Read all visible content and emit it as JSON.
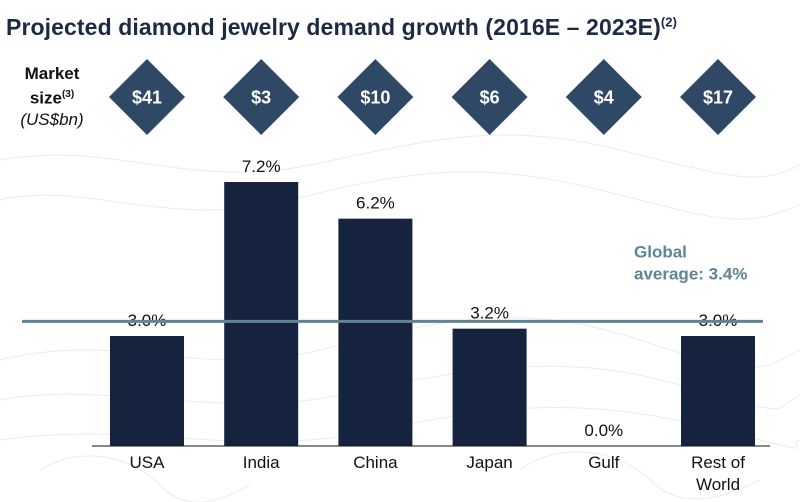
{
  "title": {
    "text": "Projected diamond jewelry demand growth (2016E – 2023E)",
    "note": "(2)"
  },
  "market_size_label": {
    "line1": "Market",
    "line2": "size",
    "note": "(3)",
    "unit": "(US$bn)"
  },
  "colors": {
    "bar": "#15233f",
    "diamond": "#2e4866",
    "average_line": "#5e8596",
    "average_text": "#5e8596",
    "title": "#1c2b44"
  },
  "chart_data": {
    "type": "bar",
    "categories": [
      "USA",
      "India",
      "China",
      "Japan",
      "Gulf",
      "Rest of World"
    ],
    "category_lines": [
      [
        "USA"
      ],
      [
        "India"
      ],
      [
        "China"
      ],
      [
        "Japan"
      ],
      [
        "Gulf"
      ],
      [
        "Rest of",
        "World"
      ]
    ],
    "values": [
      3.0,
      7.2,
      6.2,
      3.2,
      0.0,
      3.0
    ],
    "value_labels": [
      "3.0%",
      "7.2%",
      "6.2%",
      "3.2%",
      "0.0%",
      "3.0%"
    ],
    "market_sizes": [
      "$41",
      "$3",
      "$10",
      "$6",
      "$4",
      "$17"
    ],
    "ylim": [
      0,
      7.2
    ],
    "grid": false,
    "reference_line": {
      "value": 3.4,
      "label_line1": "Global",
      "label_line2": "average: 3.4%"
    }
  }
}
